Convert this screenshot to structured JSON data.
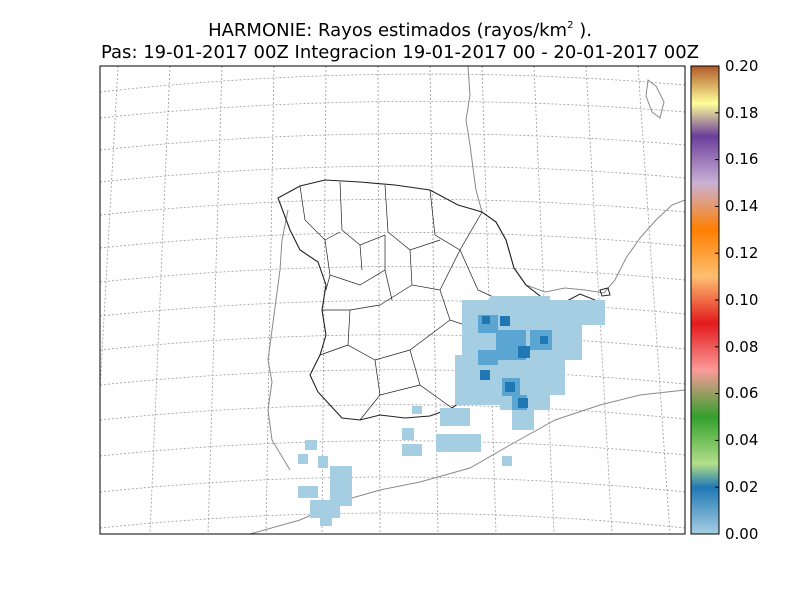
{
  "title": {
    "line1_main": "HARMONIE: Rayos estimados  (rayos/km",
    "line1_sup": "2",
    "line1_end": " ).",
    "line2": "Pas: 19-01-2017 00Z Integracion 19-01-2017 00 - 20-01-2017 00Z"
  },
  "colorbar": {
    "ticks": [
      "0.20",
      "0.18",
      "0.16",
      "0.14",
      "0.12",
      "0.10",
      "0.08",
      "0.06",
      "0.04",
      "0.02",
      "0.00"
    ],
    "stops": [
      {
        "v": 0.0,
        "c": "#a6cee3"
      },
      {
        "v": 0.02,
        "c": "#1f78b4"
      },
      {
        "v": 0.03,
        "c": "#b2df8a"
      },
      {
        "v": 0.05,
        "c": "#33a02c"
      },
      {
        "v": 0.07,
        "c": "#fb9a99"
      },
      {
        "v": 0.09,
        "c": "#e31a1c"
      },
      {
        "v": 0.11,
        "c": "#fdbf6f"
      },
      {
        "v": 0.13,
        "c": "#ff7f00"
      },
      {
        "v": 0.15,
        "c": "#cab2d6"
      },
      {
        "v": 0.17,
        "c": "#6a3d9a"
      },
      {
        "v": 0.185,
        "c": "#ffff99"
      },
      {
        "v": 0.2,
        "c": "#b15928"
      }
    ]
  },
  "map": {
    "region": "Iberian Peninsula and Balearic Islands",
    "grid_lines": "dotted gray",
    "boundaries": "black provincial borders"
  }
}
